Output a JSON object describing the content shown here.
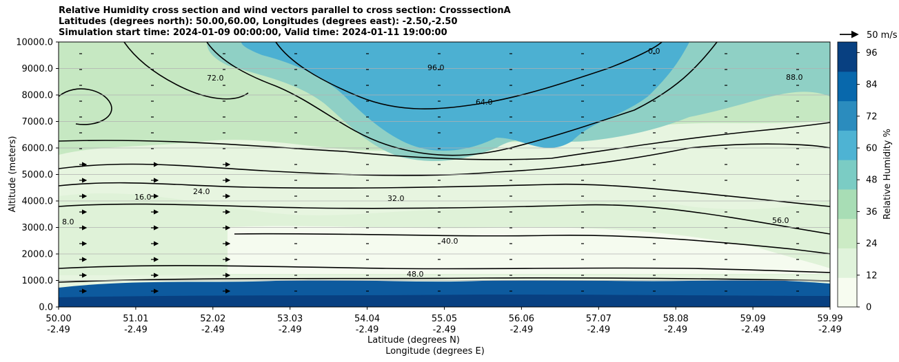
{
  "title": {
    "line1": "Relative Humidity cross section and wind vectors parallel to cross section: CrosssectionA",
    "line2": "Latitudes (degrees north): 50.00,60.00, Longitudes (degrees east): -2.50,-2.50",
    "line3": "Simulation start time: 2024-01-09 00:00:00, Valid time: 2024-01-11 19:00:00"
  },
  "chart_data": {
    "type": "heatmap",
    "xlabel_line1": "Latitude (degrees N)",
    "xlabel_line2": "Longitude (degrees E)",
    "ylabel": "Altitude (meters)",
    "ylim": [
      0,
      10000
    ],
    "grid": "horizontal",
    "x_ticks": [
      {
        "lat": "50.00",
        "lon": "-2.49"
      },
      {
        "lat": "51.01",
        "lon": "-2.49"
      },
      {
        "lat": "52.02",
        "lon": "-2.49"
      },
      {
        "lat": "53.03",
        "lon": "-2.49"
      },
      {
        "lat": "54.04",
        "lon": "-2.49"
      },
      {
        "lat": "55.05",
        "lon": "-2.49"
      },
      {
        "lat": "56.06",
        "lon": "-2.49"
      },
      {
        "lat": "57.07",
        "lon": "-2.49"
      },
      {
        "lat": "58.08",
        "lon": "-2.49"
      },
      {
        "lat": "59.09",
        "lon": "-2.49"
      },
      {
        "lat": "59.99",
        "lon": "-2.49"
      }
    ],
    "y_ticks": [
      "0.0",
      "1000.0",
      "2000.0",
      "3000.0",
      "4000.0",
      "5000.0",
      "6000.0",
      "7000.0",
      "8000.0",
      "9000.0",
      "10000.0"
    ],
    "colorbar": {
      "label": "Relative Humidity %",
      "ticks": [
        "0",
        "12",
        "24",
        "36",
        "48",
        "60",
        "72",
        "84",
        "96"
      ],
      "range": [
        0,
        100
      ],
      "colors": [
        "#f7fcf0",
        "#e0f3db",
        "#ccebc5",
        "#a8ddb5",
        "#7bccc4",
        "#4eb3d3",
        "#2b8cbe",
        "#0868ac",
        "#084081"
      ]
    },
    "wind_reference": "50 m/s",
    "contour_labels": [
      "8.0",
      "16.0",
      "24.0",
      "32.0",
      "40.0",
      "48.0",
      "56.0",
      "64.0",
      "72.0",
      "88.0",
      "96.0",
      "0.0"
    ],
    "rh_field_description": "low RH (~8-24%) mid-levels 1500-5500 m; high RH (40-70%) upper levels 6000-10000 m; saturated (~96%) boundary layer below 700 m"
  }
}
